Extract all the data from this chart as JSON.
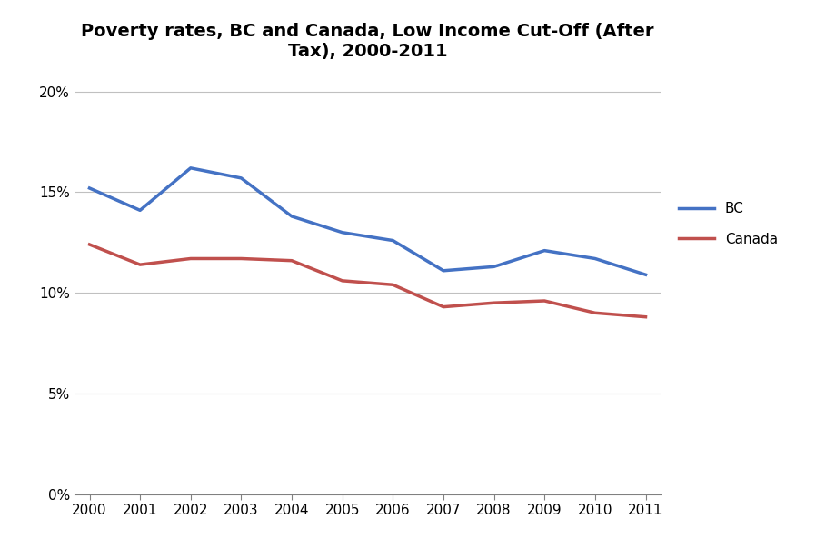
{
  "title": "Poverty rates, BC and Canada, Low Income Cut-Off (After\nTax), 2000-2011",
  "years": [
    2000,
    2001,
    2002,
    2003,
    2004,
    2005,
    2006,
    2007,
    2008,
    2009,
    2010,
    2011
  ],
  "bc_values": [
    0.152,
    0.141,
    0.162,
    0.157,
    0.138,
    0.13,
    0.126,
    0.111,
    0.113,
    0.121,
    0.117,
    0.109
  ],
  "canada_values": [
    0.124,
    0.114,
    0.117,
    0.117,
    0.116,
    0.106,
    0.104,
    0.093,
    0.095,
    0.096,
    0.09,
    0.088
  ],
  "bc_color": "#4472C4",
  "canada_color": "#C0504D",
  "ylim": [
    0.0,
    0.21
  ],
  "yticks": [
    0.0,
    0.05,
    0.1,
    0.15,
    0.2
  ],
  "ytick_labels": [
    "0%",
    "5%",
    "10%",
    "15%",
    "20%"
  ],
  "legend_labels": [
    "BC",
    "Canada"
  ],
  "title_fontsize": 14,
  "axis_fontsize": 11,
  "tick_fontsize": 11,
  "line_width": 2.5,
  "background_color": "#FFFFFF",
  "grid_color": "#C0C0C0"
}
